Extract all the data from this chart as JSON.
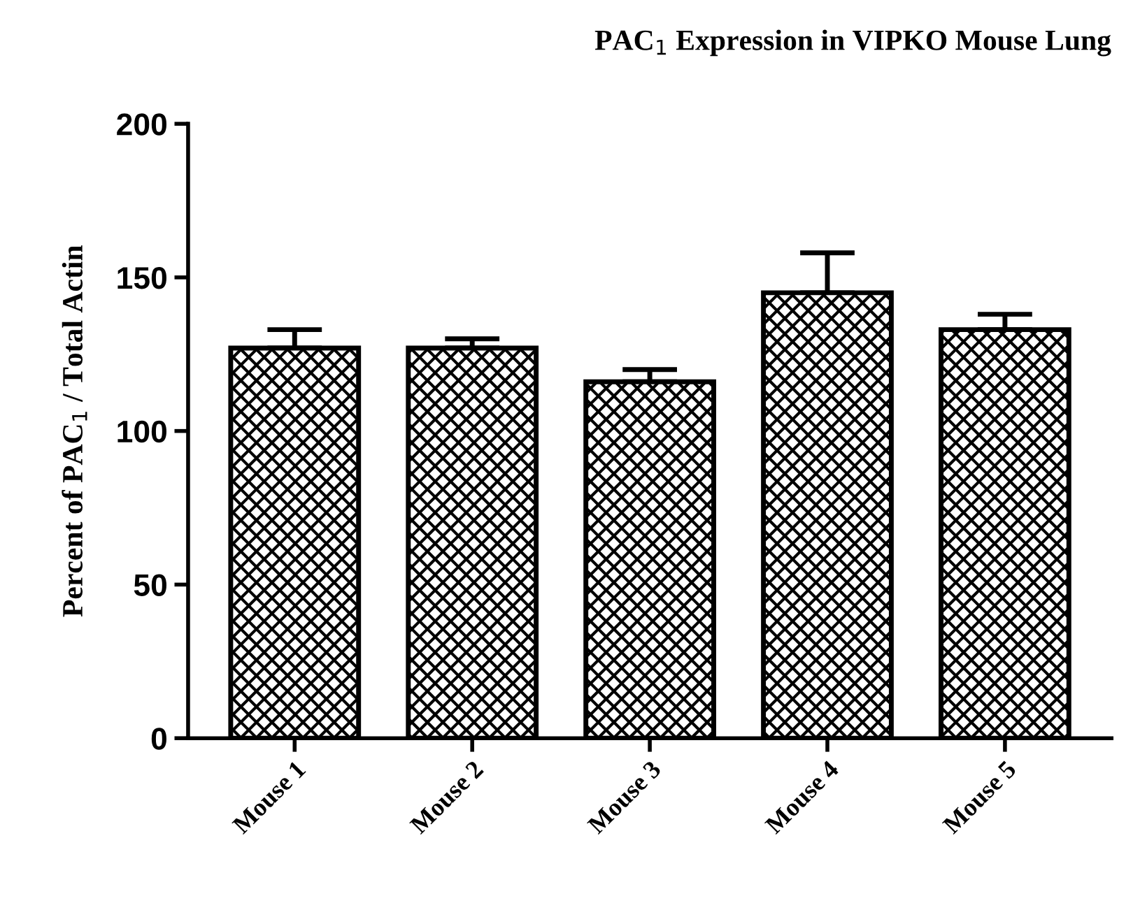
{
  "chart_data": {
    "type": "bar",
    "title": "PAC$_{1}$ Expression in VIPKO Mouse Lung",
    "ylabel": "Percent of PAC$_{1}$ / Total Actin",
    "categories": [
      "Mouse 1",
      "Mouse 2",
      "Mouse 3",
      "Mouse 4",
      "Mouse 5"
    ],
    "values": [
      127,
      127,
      116,
      145,
      133
    ],
    "errors": [
      [
        127,
        133
      ],
      [
        127,
        130
      ],
      [
        116,
        120
      ],
      [
        145,
        158
      ],
      [
        133,
        138
      ]
    ],
    "color": "#000000",
    "ylim": [
      0,
      200
    ],
    "yticks": [
      0,
      50,
      100,
      150,
      200
    ],
    "grid": false
  }
}
